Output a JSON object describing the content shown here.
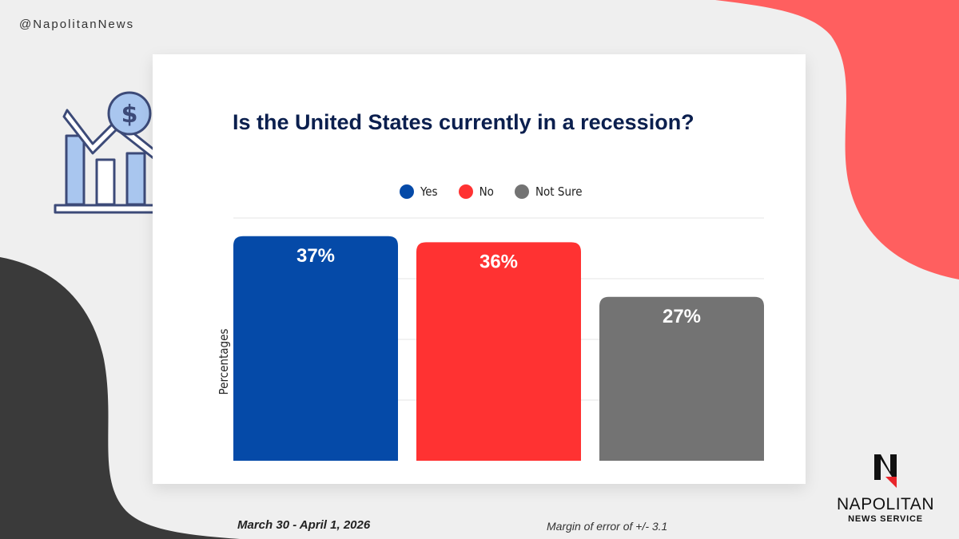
{
  "header": {
    "handle": "@NapolitanNews"
  },
  "brand": {
    "name": "NAPOLITAN",
    "subtitle": "NEWS SERVICE",
    "colors": {
      "navy": "#0b1f4e",
      "red": "#ff5f5f",
      "dark": "#3a3a3a"
    }
  },
  "decor": {
    "icon": "recession-chart-dollar-icon",
    "logo": "napolitan-n-logo-icon"
  },
  "chart_data": {
    "type": "bar",
    "title": "Is the United States currently in a recession?",
    "categories": [
      "Yes",
      "No",
      "Not Sure"
    ],
    "values": [
      37,
      36,
      27
    ],
    "value_labels": [
      "37%",
      "36%",
      "27%"
    ],
    "colors": [
      "#054aa8",
      "#ff3232",
      "#737373"
    ],
    "ylabel": "Percentages",
    "xlabel": "",
    "ylim": [
      0,
      40
    ],
    "grid": true,
    "legend": "top-center"
  },
  "footer": {
    "dates": "March 30 - April 1, 2026",
    "margin_of_error": "Margin of error of +/- 3.1"
  }
}
